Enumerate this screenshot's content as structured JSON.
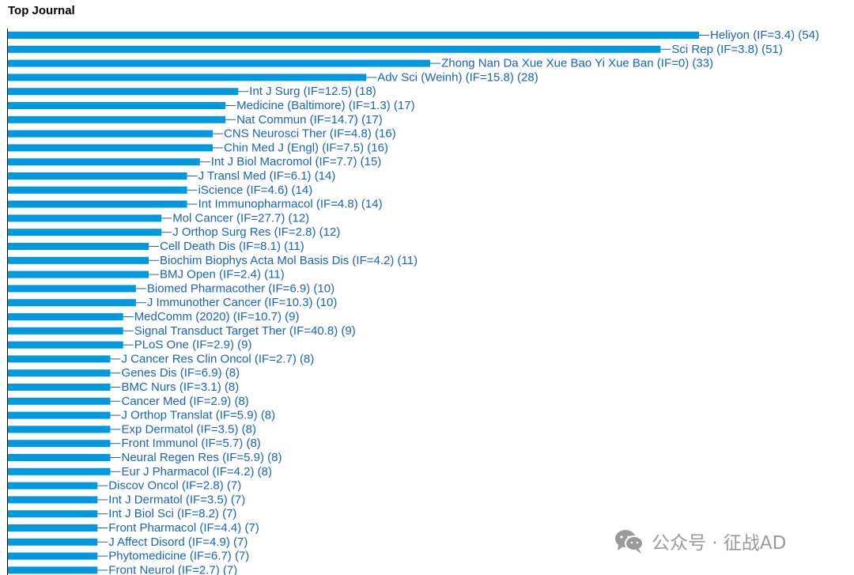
{
  "colors": {
    "bar": "#0099e0",
    "label": "#1565c0",
    "axis": "#000000",
    "watermark": "#9a9a9a"
  },
  "watermark": {
    "icon": "wechat-icon",
    "text": "公众号 · 征战AD"
  },
  "chart_data": {
    "type": "bar",
    "orientation": "horizontal",
    "title": "Top Journal",
    "xlabel": "",
    "ylabel": "",
    "grid": false,
    "xlim": [
      0,
      54
    ],
    "categories": [
      "Heliyon (IF=3.4) (54)",
      "Sci Rep (IF=3.8) (51)",
      "Zhong Nan Da Xue Xue Bao Yi Xue Ban (IF=0) (33)",
      "Adv Sci (Weinh) (IF=15.8) (28)",
      "Int J Surg (IF=12.5) (18)",
      "Medicine (Baltimore) (IF=1.3) (17)",
      "Nat Commun (IF=14.7) (17)",
      "CNS Neurosci Ther (IF=4.8) (16)",
      "Chin Med J (Engl) (IF=7.5) (16)",
      "Int J Biol Macromol (IF=7.7) (15)",
      "J Transl Med (IF=6.1) (14)",
      "iScience (IF=4.6) (14)",
      "Int Immunopharmacol (IF=4.8) (14)",
      "Mol Cancer (IF=27.7) (12)",
      "J Orthop Surg Res (IF=2.8) (12)",
      "Cell Death Dis (IF=8.1) (11)",
      "Biochim Biophys Acta Mol Basis Dis (IF=4.2) (11)",
      "BMJ Open (IF=2.4) (11)",
      "Biomed Pharmacother (IF=6.9) (10)",
      "J Immunother Cancer (IF=10.3) (10)",
      "MedComm (2020) (IF=10.7) (9)",
      "Signal Transduct Target Ther (IF=40.8) (9)",
      "PLoS One (IF=2.9) (9)",
      "J Cancer Res Clin Oncol (IF=2.7) (8)",
      "Genes Dis (IF=6.9) (8)",
      "BMC Nurs (IF=3.1) (8)",
      "Cancer Med (IF=2.9) (8)",
      "J Orthop Translat (IF=5.9) (8)",
      "Exp Dermatol (IF=3.5) (8)",
      "Front Immunol (IF=5.7) (8)",
      "Neural Regen Res (IF=5.9) (8)",
      "Eur J Pharmacol (IF=4.2) (8)",
      "Discov Oncol (IF=2.8) (7)",
      "Int J Dermatol (IF=3.5) (7)",
      "Int J Biol Sci (IF=8.2) (7)",
      "Front Pharmacol (IF=4.4) (7)",
      "J Affect Disord (IF=4.9) (7)",
      "Phytomedicine (IF=6.7) (7)",
      "Front Neurol (IF=2.7) (7)"
    ],
    "values": [
      54,
      51,
      33,
      28,
      18,
      17,
      17,
      16,
      16,
      15,
      14,
      14,
      14,
      12,
      12,
      11,
      11,
      11,
      10,
      10,
      9,
      9,
      9,
      8,
      8,
      8,
      8,
      8,
      8,
      8,
      8,
      8,
      7,
      7,
      7,
      7,
      7,
      7,
      7
    ]
  }
}
